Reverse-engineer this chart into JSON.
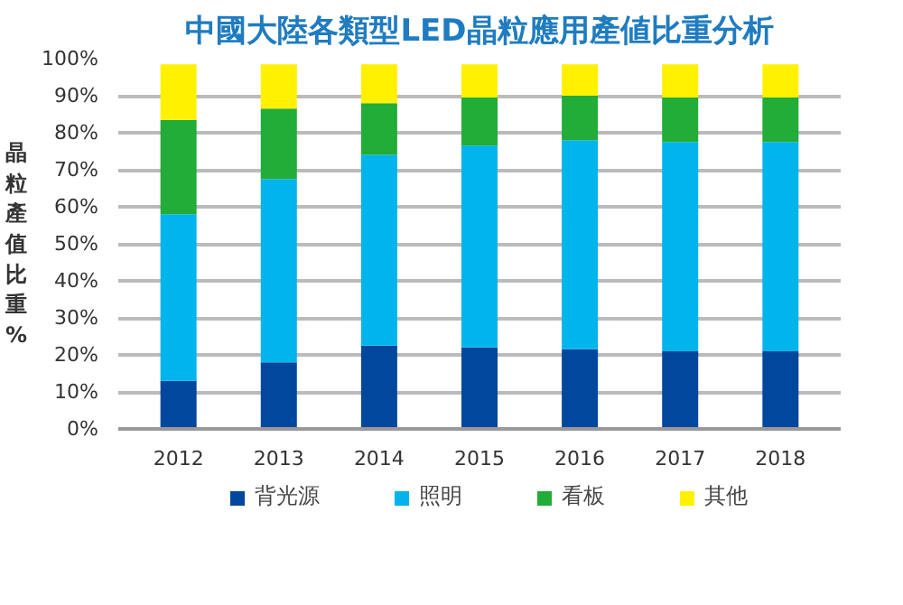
{
  "chart_data": {
    "type": "bar",
    "stacked": true,
    "title": "中國大陸各類型LED晶粒應用產値比重分析",
    "ylabel": "晶粒產值比重%",
    "categories": [
      "2012",
      "2013",
      "2014",
      "2015",
      "2016",
      "2017",
      "2018"
    ],
    "series": [
      {
        "name": "背光源",
        "color": "#00479d",
        "values": [
          13,
          18,
          22.5,
          22,
          21.5,
          21,
          21
        ]
      },
      {
        "name": "照明",
        "color": "#00b4ec",
        "values": [
          45,
          49.5,
          51.5,
          54.5,
          56.5,
          56.5,
          56.5
        ]
      },
      {
        "name": "看板",
        "color": "#22ac38",
        "values": [
          25.5,
          19,
          14,
          13,
          12,
          12,
          12
        ]
      },
      {
        "name": "其他",
        "color": "#fff100",
        "values": [
          15,
          12,
          10.5,
          9,
          8.5,
          9,
          9
        ]
      }
    ],
    "ylim": [
      0,
      100
    ],
    "yticks": [
      {
        "value": 0,
        "label": "0%"
      },
      {
        "value": 10,
        "label": "10%"
      },
      {
        "value": 20,
        "label": "20%"
      },
      {
        "value": 30,
        "label": "30%"
      },
      {
        "value": 40,
        "label": "40%"
      },
      {
        "value": 50,
        "label": "50%"
      },
      {
        "value": 60,
        "label": "60%"
      },
      {
        "value": 70,
        "label": "70%"
      },
      {
        "value": 80,
        "label": "80%"
      },
      {
        "value": 90,
        "label": "90%"
      },
      {
        "value": 100,
        "label": "100%"
      }
    ],
    "grid": "y",
    "legend": "bottom"
  }
}
